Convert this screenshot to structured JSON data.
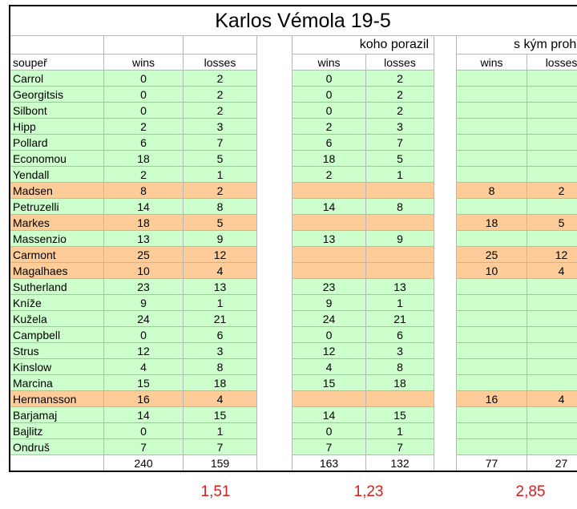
{
  "title": "Karlos Vémola 19-5",
  "groups": {
    "defeated": "koho porazil",
    "lost_to": "s kým prohrál"
  },
  "headers": {
    "opponent": "soupeř",
    "wins": "wins",
    "losses": "losses"
  },
  "colors": {
    "win_row": "#ccffcc",
    "loss_row": "#fdcc99",
    "ratio_text": "#d71e1e"
  },
  "rows": [
    {
      "name": "Carrol",
      "result": "win",
      "wins": "0",
      "losses": "2",
      "def_wins": "0",
      "def_losses": "2",
      "lost_wins": "",
      "lost_losses": ""
    },
    {
      "name": "Georgitsis",
      "result": "win",
      "wins": "0",
      "losses": "2",
      "def_wins": "0",
      "def_losses": "2",
      "lost_wins": "",
      "lost_losses": ""
    },
    {
      "name": "Silbont",
      "result": "win",
      "wins": "0",
      "losses": "2",
      "def_wins": "0",
      "def_losses": "2",
      "lost_wins": "",
      "lost_losses": ""
    },
    {
      "name": "Hipp",
      "result": "win",
      "wins": "2",
      "losses": "3",
      "def_wins": "2",
      "def_losses": "3",
      "lost_wins": "",
      "lost_losses": ""
    },
    {
      "name": "Pollard",
      "result": "win",
      "wins": "6",
      "losses": "7",
      "def_wins": "6",
      "def_losses": "7",
      "lost_wins": "",
      "lost_losses": ""
    },
    {
      "name": "Economou",
      "result": "win",
      "wins": "18",
      "losses": "5",
      "def_wins": "18",
      "def_losses": "5",
      "lost_wins": "",
      "lost_losses": ""
    },
    {
      "name": "Yendall",
      "result": "win",
      "wins": "2",
      "losses": "1",
      "def_wins": "2",
      "def_losses": "1",
      "lost_wins": "",
      "lost_losses": ""
    },
    {
      "name": "Madsen",
      "result": "loss",
      "wins": "8",
      "losses": "2",
      "def_wins": "",
      "def_losses": "",
      "lost_wins": "8",
      "lost_losses": "2"
    },
    {
      "name": "Petruzelli",
      "result": "win",
      "wins": "14",
      "losses": "8",
      "def_wins": "14",
      "def_losses": "8",
      "lost_wins": "",
      "lost_losses": ""
    },
    {
      "name": "Markes",
      "result": "loss",
      "wins": "18",
      "losses": "5",
      "def_wins": "",
      "def_losses": "",
      "lost_wins": "18",
      "lost_losses": "5"
    },
    {
      "name": "Massenzio",
      "result": "win",
      "wins": "13",
      "losses": "9",
      "def_wins": "13",
      "def_losses": "9",
      "lost_wins": "",
      "lost_losses": ""
    },
    {
      "name": "Carmont",
      "result": "loss",
      "wins": "25",
      "losses": "12",
      "def_wins": "",
      "def_losses": "",
      "lost_wins": "25",
      "lost_losses": "12"
    },
    {
      "name": "Magalhaes",
      "result": "loss",
      "wins": "10",
      "losses": "4",
      "def_wins": "",
      "def_losses": "",
      "lost_wins": "10",
      "lost_losses": "4"
    },
    {
      "name": "Sutherland",
      "result": "win",
      "wins": "23",
      "losses": "13",
      "def_wins": "23",
      "def_losses": "13",
      "lost_wins": "",
      "lost_losses": ""
    },
    {
      "name": "Kníže",
      "result": "win",
      "wins": "9",
      "losses": "1",
      "def_wins": "9",
      "def_losses": "1",
      "lost_wins": "",
      "lost_losses": ""
    },
    {
      "name": "Kužela",
      "result": "win",
      "wins": "24",
      "losses": "21",
      "def_wins": "24",
      "def_losses": "21",
      "lost_wins": "",
      "lost_losses": ""
    },
    {
      "name": "Campbell",
      "result": "win",
      "wins": "0",
      "losses": "6",
      "def_wins": "0",
      "def_losses": "6",
      "lost_wins": "",
      "lost_losses": ""
    },
    {
      "name": "Strus",
      "result": "win",
      "wins": "12",
      "losses": "3",
      "def_wins": "12",
      "def_losses": "3",
      "lost_wins": "",
      "lost_losses": ""
    },
    {
      "name": "Kinslow",
      "result": "win",
      "wins": "4",
      "losses": "8",
      "def_wins": "4",
      "def_losses": "8",
      "lost_wins": "",
      "lost_losses": ""
    },
    {
      "name": "Marcina",
      "result": "win",
      "wins": "15",
      "losses": "18",
      "def_wins": "15",
      "def_losses": "18",
      "lost_wins": "",
      "lost_losses": ""
    },
    {
      "name": "Hermansson",
      "result": "loss",
      "wins": "16",
      "losses": "4",
      "def_wins": "",
      "def_losses": "",
      "lost_wins": "16",
      "lost_losses": "4"
    },
    {
      "name": "Barjamaj",
      "result": "win",
      "wins": "14",
      "losses": "15",
      "def_wins": "14",
      "def_losses": "15",
      "lost_wins": "",
      "lost_losses": ""
    },
    {
      "name": "Bajlitz",
      "result": "win",
      "wins": "0",
      "losses": "1",
      "def_wins": "0",
      "def_losses": "1",
      "lost_wins": "",
      "lost_losses": ""
    },
    {
      "name": "Ondruš",
      "result": "win",
      "wins": "7",
      "losses": "7",
      "def_wins": "7",
      "def_losses": "7",
      "lost_wins": "",
      "lost_losses": ""
    }
  ],
  "totals": {
    "wins": "240",
    "losses": "159",
    "def_wins": "163",
    "def_losses": "132",
    "lost_wins": "77",
    "lost_losses": "27"
  },
  "ratios": {
    "all": "1,51",
    "defeated": "1,23",
    "lost_to": "2,85"
  }
}
